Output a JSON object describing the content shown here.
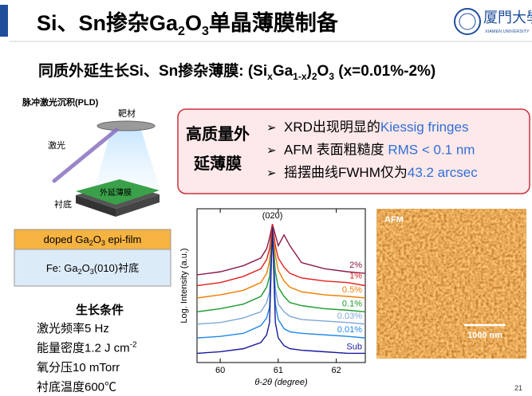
{
  "header": {
    "title": [
      "Si、Sn掺杂Ga",
      "2",
      "O",
      "3",
      "单晶薄膜制备"
    ],
    "logo": "厦門大學",
    "logo_sub": "XIAMEN UNIVERSITY"
  },
  "subtitle": [
    "同质外延生长Si、Sn掺杂薄膜: (Si",
    "x",
    "Ga",
    "1-x",
    ")",
    "2",
    "O",
    "3",
    " (x=0.01%-2%)"
  ],
  "pld": {
    "title": "脉冲激光沉积(PLD)",
    "target": "靶材",
    "laser": "激光",
    "film": "外延薄膜",
    "substrate": "衬底"
  },
  "layers": {
    "film": [
      "doped Ga",
      "2",
      "O",
      "3",
      " epi-film"
    ],
    "substrate": [
      "Fe: Ga",
      "2",
      "O",
      "3",
      "(010)衬底"
    ]
  },
  "conditions": {
    "title": "生长条件",
    "items": [
      [
        "激光频率5 Hz"
      ],
      [
        "能量密度1.2 J cm",
        "-2"
      ],
      [
        "氧分压10 mTorr"
      ],
      [
        "衬底温度600℃"
      ]
    ]
  },
  "highlight": {
    "title": [
      "高质量外",
      "延薄膜"
    ],
    "bullets": [
      [
        "XRD出现明显的",
        "Kiessig fringes"
      ],
      [
        "AFM 表面粗糙度 ",
        "RMS < 0.1 nm"
      ],
      [
        "摇摆曲线FWHM仅为",
        "43.2 arcsec"
      ]
    ]
  },
  "chart_data": {
    "type": "line",
    "x_label": "θ-2θ (degree)",
    "y_label": "Log. Intensity (a.u.)",
    "annotation": "(020)",
    "x": [
      59.6,
      60.0,
      60.4,
      60.7,
      60.8,
      60.85,
      60.9,
      60.95,
      61.0,
      61.1,
      61.2,
      61.4,
      61.8,
      62.2,
      62.5
    ],
    "xlim": [
      59.6,
      62.5
    ],
    "xticks": [
      60,
      61,
      62
    ],
    "ylim": [
      0,
      10
    ],
    "series": [
      {
        "name": "2%",
        "color": "#8b1a4a",
        "values": [
          5.7,
          5.9,
          6.3,
          6.8,
          7.4,
          8.1,
          9.0,
          8.3,
          7.6,
          8.3,
          7.6,
          6.5,
          6.1,
          5.9,
          5.8
        ]
      },
      {
        "name": "1%",
        "color": "#e0201b",
        "values": [
          5.0,
          5.2,
          5.6,
          6.1,
          6.7,
          7.4,
          9.0,
          7.6,
          6.8,
          6.2,
          5.8,
          5.5,
          5.3,
          5.2,
          5.0
        ]
      },
      {
        "name": "0.5%",
        "color": "#f07d00",
        "values": [
          4.2,
          4.4,
          4.7,
          5.2,
          5.8,
          6.6,
          8.8,
          7.0,
          6.0,
          5.3,
          4.9,
          4.6,
          4.4,
          4.3,
          4.2
        ]
      },
      {
        "name": "0.1%",
        "color": "#1e9a2e",
        "values": [
          3.3,
          3.5,
          3.8,
          4.3,
          4.9,
          5.6,
          8.5,
          5.9,
          4.9,
          4.3,
          3.9,
          3.7,
          3.5,
          3.4,
          3.3
        ]
      },
      {
        "name": "0.03%",
        "color": "#7fa7d6",
        "values": [
          2.5,
          2.6,
          2.9,
          3.3,
          3.9,
          4.6,
          8.4,
          4.8,
          3.8,
          3.3,
          3.0,
          2.8,
          2.7,
          2.6,
          2.5
        ]
      },
      {
        "name": "0.01%",
        "color": "#1e88e5",
        "values": [
          1.6,
          1.7,
          1.9,
          2.4,
          2.9,
          3.6,
          8.6,
          3.8,
          2.8,
          2.2,
          2.0,
          1.9,
          1.8,
          1.7,
          1.6
        ]
      },
      {
        "name": "Sub",
        "color": "#1a1a9c",
        "values": [
          0.6,
          0.7,
          0.9,
          1.3,
          1.8,
          2.6,
          8.8,
          2.6,
          1.6,
          1.1,
          0.9,
          0.8,
          0.7,
          0.6,
          0.6
        ]
      }
    ]
  },
  "afm": {
    "label": "AFM",
    "scale": "1000 nm"
  },
  "page_number": "21"
}
